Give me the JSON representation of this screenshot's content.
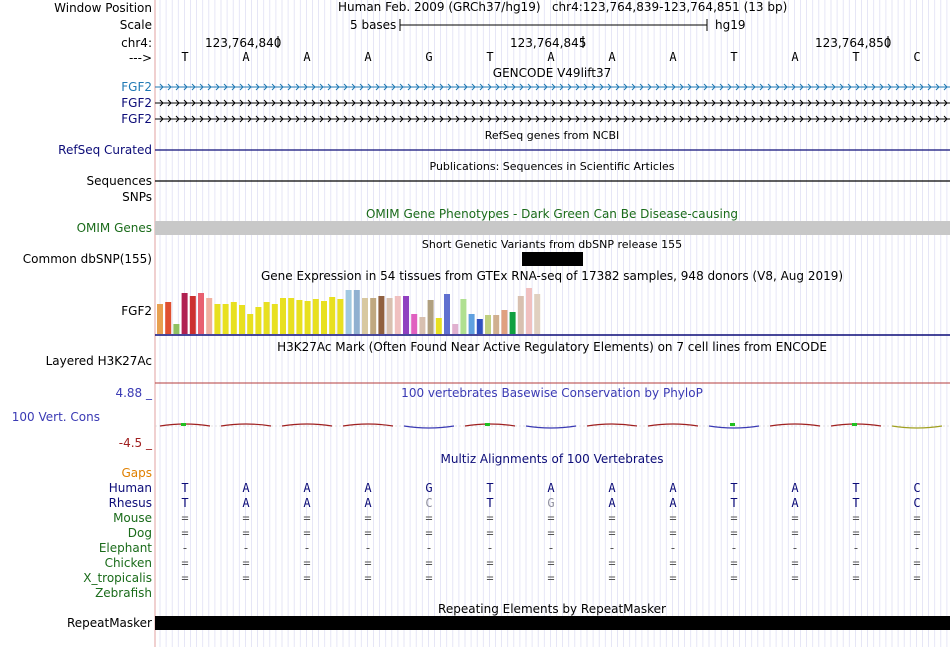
{
  "header": {
    "window_position_label": "Window Position",
    "scale_label": "Scale",
    "chrom_label": "chr4:",
    "strand_label": "--->",
    "assembly_title": "Human Feb. 2009 (GRCh37/hg19)   chr4:123,764,839-123,764,851 (13 bp)",
    "scale_text": "5 bases",
    "scale_db": "hg19",
    "positions": [
      "123,764,840",
      "123,764,845",
      "123,764,850"
    ],
    "sequence": [
      "T",
      "A",
      "A",
      "A",
      "G",
      "T",
      "A",
      "A",
      "A",
      "T",
      "A",
      "T",
      "C"
    ]
  },
  "tracks": {
    "gencode": {
      "title": "GENCODE V49lift37",
      "genes": [
        "FGF2",
        "FGF2",
        "FGF2"
      ]
    },
    "refseq": {
      "title": "RefSeq genes from NCBI",
      "label": "RefSeq Curated"
    },
    "publications": {
      "title": "Publications: Sequences in Scientific Articles",
      "label_seq": "Sequences",
      "label_snp": "SNPs"
    },
    "omim": {
      "title": "OMIM Gene Phenotypes - Dark Green Can Be Disease-causing",
      "label": "OMIM Genes"
    },
    "dbsnp": {
      "title": "Short Genetic Variants from dbSNP release 155",
      "label": "Common dbSNP(155)"
    },
    "gtex": {
      "title": "Gene Expression in 54 tissues from GTEx RNA-seq of 17382 samples, 948 donors (V8, Aug 2019)",
      "label": "FGF2"
    },
    "h3k27ac": {
      "title": "H3K27Ac Mark (Often Found Near Active Regulatory Elements) on 7 cell lines from ENCODE",
      "label": "Layered H3K27Ac"
    },
    "phylop": {
      "title": "100 vertebrates Basewise Conservation by PhyloP",
      "label": "100 Vert. Cons",
      "max": "4.88 _",
      "min": "-4.5 _"
    },
    "multiz": {
      "title": "Multiz Alignments of 100 Vertebrates",
      "gaps_label": "Gaps",
      "species": [
        {
          "name": "Human",
          "bases": [
            "T",
            "A",
            "A",
            "A",
            "G",
            "T",
            "A",
            "A",
            "A",
            "T",
            "A",
            "T",
            "C"
          ]
        },
        {
          "name": "Rhesus",
          "bases": [
            "T",
            "A",
            "A",
            "A",
            "C",
            "T",
            "G",
            "A",
            "A",
            "T",
            "A",
            "T",
            "C"
          ]
        },
        {
          "name": "Mouse",
          "bases": [
            "=",
            "=",
            "=",
            "=",
            "=",
            "=",
            "=",
            "=",
            "=",
            "=",
            "=",
            "=",
            "="
          ]
        },
        {
          "name": "Dog",
          "bases": [
            "=",
            "=",
            "=",
            "=",
            "=",
            "=",
            "=",
            "=",
            "=",
            "=",
            "=",
            "=",
            "="
          ]
        },
        {
          "name": "Elephant",
          "bases": [
            "-",
            "-",
            "-",
            "-",
            "-",
            "-",
            "-",
            "-",
            "-",
            "-",
            "-",
            "-",
            "-"
          ]
        },
        {
          "name": "Chicken",
          "bases": [
            "=",
            "=",
            "=",
            "=",
            "=",
            "=",
            "=",
            "=",
            "=",
            "=",
            "=",
            "=",
            "="
          ]
        },
        {
          "name": "X_tropicalis",
          "bases": [
            "=",
            "=",
            "=",
            "=",
            "=",
            "=",
            "=",
            "=",
            "=",
            "=",
            "=",
            "=",
            "="
          ]
        },
        {
          "name": "Zebrafish",
          "bases": []
        }
      ]
    },
    "repeatmasker": {
      "title": "Repeating Elements by RepeatMasker",
      "label": "RepeatMasker"
    }
  },
  "colors": {
    "gencode_blue": "#1f79b4",
    "navy": "#0c0c78",
    "omim_gray": "#c8c8c8",
    "omim_title": "#1a6b1a",
    "phylop_blue": "#3a3ab4",
    "phylop_red": "#a02020",
    "gaps_orange": "#e08000",
    "multiz_green": "#1a6b1a",
    "h3k_red": "#b43c3c"
  }
}
